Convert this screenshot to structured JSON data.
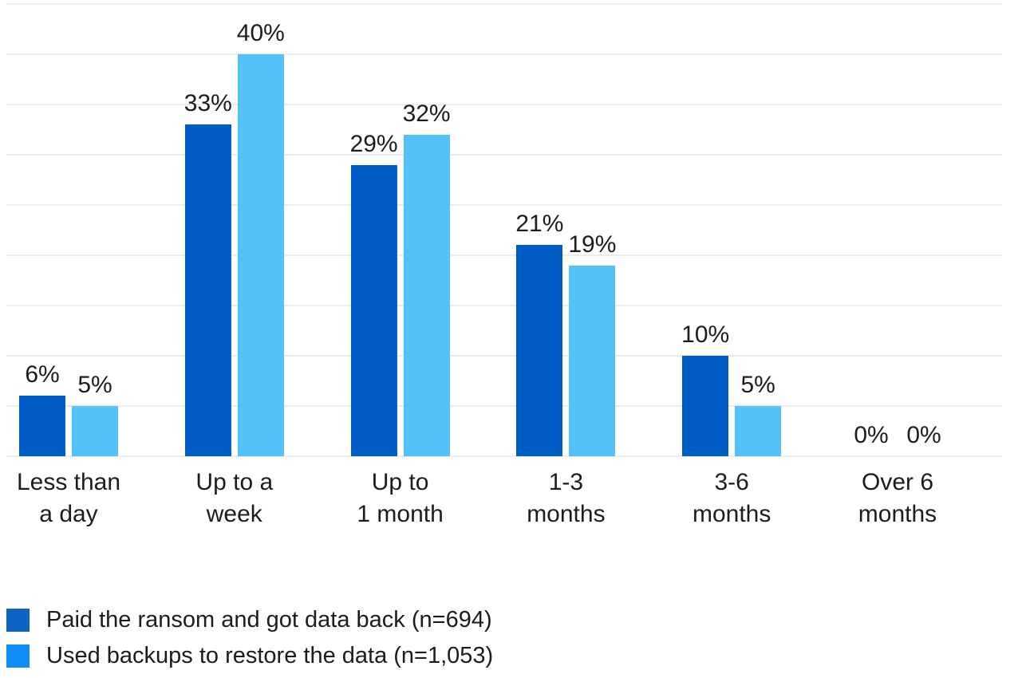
{
  "chart_data": {
    "type": "bar",
    "title": "",
    "xlabel": "",
    "ylabel": "",
    "categories": [
      [
        "Less than",
        "a day"
      ],
      [
        "Up to a",
        "week"
      ],
      [
        "Up to",
        "1 month"
      ],
      [
        "1-3",
        "months"
      ],
      [
        "3-6",
        "months"
      ],
      [
        "Over 6",
        "months"
      ]
    ],
    "series": [
      {
        "name": "Paid the ransom and got data back (n=694)",
        "color": "#005dc6",
        "legend_color": "#0f63c5",
        "values": [
          6,
          33,
          29,
          21,
          10,
          0
        ]
      },
      {
        "name": "Used backups to restore the data (n=1,053)",
        "color": "#54c2f8",
        "legend_color": "#0e8cfa",
        "values": [
          5,
          40,
          32,
          19,
          5,
          0
        ]
      }
    ],
    "value_label_suffix": "%",
    "ylim": [
      0,
      45
    ],
    "grid_step": 5,
    "grid": true,
    "y_tick_labels_visible": false,
    "legend_position": "bottom-left"
  },
  "colors": {
    "background": "#ffffff",
    "gridline": "#ececec",
    "text": "#1c1c1c"
  }
}
